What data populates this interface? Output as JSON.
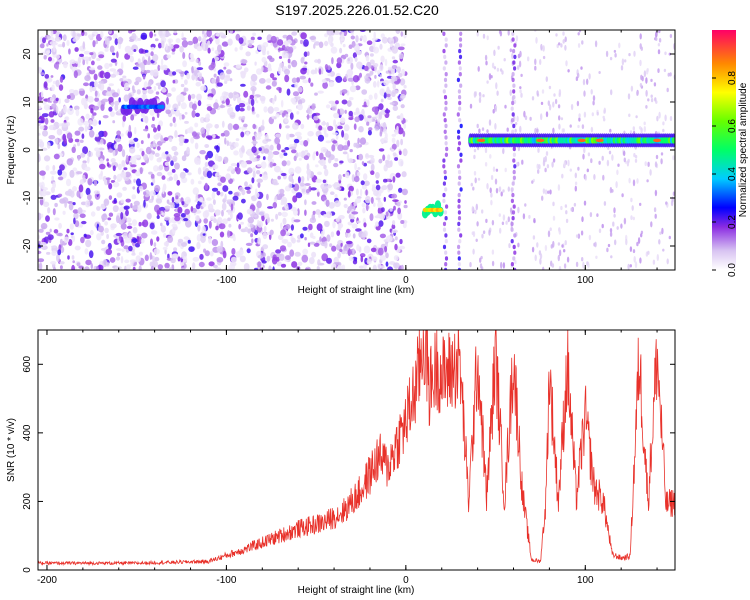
{
  "title": "S197.2025.226.01.52.C20",
  "chart_data": [
    {
      "type": "heatmap",
      "name": "spectrogram",
      "xlabel": "Height of straight line (km)",
      "ylabel": "Frequency (Hz)",
      "xlim": [
        -205,
        150
      ],
      "ylim": [
        -25,
        25
      ],
      "xticks": [
        -200,
        -100,
        0,
        100
      ],
      "yticks": [
        -20,
        -10,
        0,
        10,
        20
      ],
      "tick_labels_x": [
        "-200",
        "-100",
        "0",
        "100"
      ],
      "tick_labels_y": [
        "-20",
        "-10",
        "0",
        "10",
        "20"
      ],
      "colorbar": {
        "label": "Normalized spectral amplitude",
        "range": [
          0,
          1
        ],
        "ticks": [
          0.0,
          0.2,
          0.4,
          0.6,
          0.8
        ],
        "tick_labels": [
          "0.0",
          "0.2",
          "0.4",
          "0.6",
          "0.8"
        ]
      },
      "features": [
        {
          "kind": "noise",
          "x_range": [
            -205,
            0
          ],
          "freq_range": [
            -25,
            25
          ]
        },
        {
          "kind": "blob",
          "x_range": [
            -158,
            -135
          ],
          "freq": 9,
          "amplitude": 0.35
        },
        {
          "kind": "blob",
          "x_range": [
            10,
            20
          ],
          "freq": -12.5,
          "amplitude": 0.85
        },
        {
          "kind": "vertical_stripe",
          "x": 22,
          "amplitude": 0.3
        },
        {
          "kind": "vertical_stripe",
          "x": 30,
          "amplitude": 0.35
        },
        {
          "kind": "vertical_stripe",
          "x": 60,
          "amplitude": 0.3
        },
        {
          "kind": "carrier",
          "x_range": [
            36,
            150
          ],
          "freq": 2,
          "amplitude": 0.9
        }
      ]
    },
    {
      "type": "line",
      "name": "snr",
      "xlabel": "Height of straight line (km)",
      "ylabel": "SNR (10 * v/v)",
      "xlim": [
        -205,
        150
      ],
      "ylim": [
        0,
        700
      ],
      "xticks": [
        -200,
        -100,
        0,
        100
      ],
      "yticks": [
        0,
        200,
        400,
        600
      ],
      "tick_labels_x": [
        "-200",
        "-100",
        "0",
        "100"
      ],
      "tick_labels_y": [
        "0",
        "200",
        "400",
        "600"
      ],
      "color": "#e8312a",
      "series": [
        {
          "name": "SNR",
          "x": [
            -205,
            -150,
            -110,
            -90,
            -75,
            -60,
            -45,
            -35,
            -25,
            -20,
            -15,
            -10,
            -5,
            0,
            5,
            8,
            10,
            13,
            15,
            18,
            20,
            25,
            30,
            35,
            40,
            45,
            50,
            55,
            60,
            65,
            70,
            75,
            78,
            80,
            85,
            90,
            95,
            100,
            105,
            110,
            115,
            120,
            125,
            130,
            135,
            140,
            145,
            150
          ],
          "y": [
            20,
            20,
            25,
            60,
            90,
            120,
            140,
            170,
            230,
            280,
            330,
            300,
            370,
            430,
            520,
            600,
            680,
            530,
            560,
            600,
            560,
            580,
            610,
            200,
            620,
            210,
            630,
            200,
            620,
            220,
            30,
            25,
            200,
            580,
            200,
            600,
            210,
            450,
            240,
            200,
            45,
            35,
            40,
            620,
            200,
            630,
            190,
            200
          ]
        }
      ]
    }
  ]
}
